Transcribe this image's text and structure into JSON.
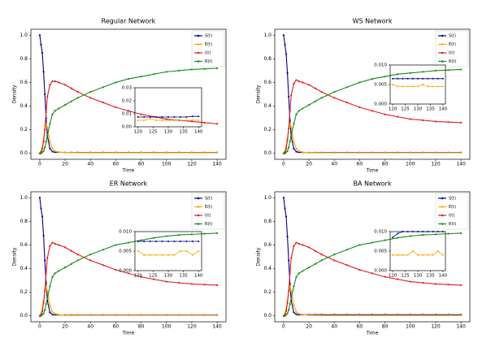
{
  "chart_data": [
    {
      "type": "line",
      "title": "Regular Network",
      "xlabel": "Time",
      "ylabel": "Density",
      "x": [
        0,
        1,
        2,
        3,
        4,
        5,
        6,
        8,
        10,
        12,
        15,
        20,
        25,
        30,
        40,
        50,
        60,
        70,
        80,
        90,
        100,
        110,
        120,
        130,
        140
      ],
      "xlim": [
        -7,
        147
      ],
      "ylim": [
        -0.05,
        1.05
      ],
      "xticks": [
        0,
        20,
        40,
        60,
        80,
        100,
        120,
        140
      ],
      "yticks": [
        {
          "value": 0,
          "label": "0.0"
        },
        0.2,
        0.4,
        0.6,
        0.8,
        {
          "value": 1,
          "label": "1.0"
        }
      ],
      "series": [
        {
          "name": "S(t)",
          "color": "#00008b",
          "values": [
            1.0,
            0.92,
            0.85,
            0.69,
            0.5,
            0.3,
            0.15,
            0.04,
            0.015,
            0.01,
            0.009,
            0.008,
            0.008,
            0.008,
            0.008,
            0.008,
            0.008,
            0.008,
            0.008,
            0.008,
            0.008,
            0.008,
            0.008,
            0.008,
            0.008
          ]
        },
        {
          "name": "E(t)",
          "color": "#ffa500",
          "values": [
            0,
            0.02,
            0.05,
            0.12,
            0.2,
            0.25,
            0.22,
            0.1,
            0.04,
            0.02,
            0.01,
            0.008,
            0.007,
            0.006,
            0.006,
            0.006,
            0.006,
            0.006,
            0.006,
            0.006,
            0.006,
            0.006,
            0.006,
            0.006,
            0.006
          ]
        },
        {
          "name": "I(t)",
          "color": "#e41a1c",
          "values": [
            0,
            0.01,
            0.04,
            0.1,
            0.2,
            0.35,
            0.48,
            0.58,
            0.61,
            0.61,
            0.6,
            0.58,
            0.55,
            0.52,
            0.47,
            0.43,
            0.39,
            0.36,
            0.33,
            0.31,
            0.29,
            0.28,
            0.27,
            0.26,
            0.25
          ]
        },
        {
          "name": "R(t)",
          "color": "#1a8a1a",
          "values": [
            0,
            0,
            0.01,
            0.02,
            0.05,
            0.1,
            0.15,
            0.25,
            0.33,
            0.36,
            0.38,
            0.41,
            0.44,
            0.47,
            0.52,
            0.56,
            0.6,
            0.63,
            0.65,
            0.67,
            0.69,
            0.7,
            0.71,
            0.715,
            0.72
          ]
        }
      ],
      "inset": {
        "x": [
          120,
          122,
          124,
          126,
          128,
          130,
          132,
          134,
          136,
          138,
          140
        ],
        "xlim": [
          119,
          141
        ],
        "ylim": [
          0,
          0.03
        ],
        "xticks": [
          120,
          125,
          130,
          135,
          140
        ],
        "yticks": [
          {
            "value": 0,
            "label": "0.00"
          },
          {
            "value": 0.01,
            "label": "0.01"
          },
          {
            "value": 0.02,
            "label": "0.02"
          },
          {
            "value": 0.03,
            "label": "0.03"
          }
        ],
        "series": [
          {
            "color": "#00008b",
            "values": [
              0.0075,
              0.0075,
              0.0075,
              0.0075,
              0.0075,
              0.0075,
              0.0075,
              0.0075,
              0.0075,
              0.008,
              0.008
            ]
          },
          {
            "color": "#ffa500",
            "values": [
              0.005,
              0.005,
              0.006,
              0.005,
              0.005,
              0.005,
              0.005,
              0.005,
              0.005,
              0.005,
              0.005
            ]
          }
        ]
      }
    },
    {
      "type": "line",
      "title": "WS Network",
      "xlabel": "Time",
      "ylabel": "Density",
      "x": [
        0,
        1,
        2,
        3,
        4,
        5,
        6,
        8,
        10,
        12,
        15,
        20,
        25,
        30,
        40,
        50,
        60,
        70,
        80,
        90,
        100,
        110,
        120,
        130,
        140
      ],
      "xlim": [
        -7,
        147
      ],
      "ylim": [
        -0.05,
        1.05
      ],
      "xticks": [
        0,
        20,
        40,
        60,
        80,
        100,
        120,
        140
      ],
      "yticks": [
        {
          "value": 0,
          "label": "0.0"
        },
        0.2,
        0.4,
        0.6,
        0.8,
        {
          "value": 1,
          "label": "1.0"
        }
      ],
      "series": [
        {
          "name": "S(t)",
          "color": "#00008b",
          "values": [
            1.0,
            0.92,
            0.84,
            0.68,
            0.48,
            0.28,
            0.14,
            0.04,
            0.014,
            0.009,
            0.008,
            0.007,
            0.007,
            0.007,
            0.007,
            0.007,
            0.007,
            0.007,
            0.007,
            0.007,
            0.007,
            0.007,
            0.007,
            0.007,
            0.007
          ]
        },
        {
          "name": "E(t)",
          "color": "#ffa500",
          "values": [
            0,
            0.02,
            0.06,
            0.13,
            0.21,
            0.25,
            0.22,
            0.1,
            0.04,
            0.02,
            0.01,
            0.007,
            0.006,
            0.005,
            0.005,
            0.005,
            0.005,
            0.005,
            0.005,
            0.005,
            0.005,
            0.005,
            0.005,
            0.005,
            0.005
          ]
        },
        {
          "name": "I(t)",
          "color": "#e41a1c",
          "values": [
            0,
            0.01,
            0.04,
            0.11,
            0.21,
            0.36,
            0.49,
            0.59,
            0.62,
            0.61,
            0.6,
            0.58,
            0.55,
            0.52,
            0.47,
            0.43,
            0.39,
            0.36,
            0.33,
            0.31,
            0.29,
            0.28,
            0.27,
            0.265,
            0.26
          ]
        },
        {
          "name": "R(t)",
          "color": "#1a8a1a",
          "values": [
            0,
            0,
            0.01,
            0.02,
            0.05,
            0.1,
            0.15,
            0.25,
            0.33,
            0.36,
            0.38,
            0.41,
            0.44,
            0.47,
            0.52,
            0.56,
            0.6,
            0.63,
            0.65,
            0.67,
            0.68,
            0.69,
            0.7,
            0.705,
            0.71
          ]
        }
      ],
      "inset": {
        "x": [
          120,
          122,
          124,
          126,
          128,
          130,
          132,
          134,
          136,
          138,
          140
        ],
        "xlim": [
          119,
          141
        ],
        "ylim": [
          0,
          0.01
        ],
        "xticks": [
          120,
          125,
          130,
          135,
          140
        ],
        "yticks": [
          {
            "value": 0,
            "label": "0.000"
          },
          {
            "value": 0.005,
            "label": "0.005"
          },
          {
            "value": 0.01,
            "label": "0.010"
          }
        ],
        "series": [
          {
            "color": "#00008b",
            "values": [
              0.0065,
              0.0065,
              0.0065,
              0.0065,
              0.0065,
              0.0065,
              0.0065,
              0.0065,
              0.0065,
              0.0065,
              0.0065
            ]
          },
          {
            "color": "#ffa500",
            "values": [
              0.005,
              0.0045,
              0.0045,
              0.0045,
              0.0045,
              0.0045,
              0.005,
              0.0045,
              0.0045,
              0.0045,
              0.0045
            ]
          }
        ]
      }
    },
    {
      "type": "line",
      "title": "ER Network",
      "xlabel": "Time",
      "ylabel": "Density",
      "x": [
        0,
        1,
        2,
        3,
        4,
        5,
        6,
        8,
        10,
        12,
        15,
        20,
        25,
        30,
        40,
        50,
        60,
        70,
        80,
        90,
        100,
        110,
        120,
        130,
        140
      ],
      "xlim": [
        -7,
        147
      ],
      "ylim": [
        -0.05,
        1.05
      ],
      "xticks": [
        0,
        20,
        40,
        60,
        80,
        100,
        120,
        140
      ],
      "yticks": [
        {
          "value": 0,
          "label": "0.0"
        },
        0.2,
        0.4,
        0.6,
        0.8,
        {
          "value": 1,
          "label": "1.0"
        }
      ],
      "series": [
        {
          "name": "S(t)",
          "color": "#00008b",
          "values": [
            1.0,
            0.91,
            0.84,
            0.68,
            0.47,
            0.28,
            0.13,
            0.03,
            0.012,
            0.009,
            0.008,
            0.0075,
            0.0075,
            0.0075,
            0.0075,
            0.0075,
            0.0075,
            0.0075,
            0.0075,
            0.0075,
            0.0075,
            0.0075,
            0.0075,
            0.0075,
            0.0075
          ]
        },
        {
          "name": "E(t)",
          "color": "#ffa500",
          "values": [
            0,
            0.02,
            0.06,
            0.13,
            0.21,
            0.25,
            0.21,
            0.09,
            0.035,
            0.018,
            0.01,
            0.006,
            0.005,
            0.005,
            0.005,
            0.005,
            0.005,
            0.005,
            0.005,
            0.005,
            0.005,
            0.005,
            0.005,
            0.005,
            0.005
          ]
        },
        {
          "name": "I(t)",
          "color": "#e41a1c",
          "values": [
            0,
            0.01,
            0.04,
            0.11,
            0.21,
            0.36,
            0.49,
            0.59,
            0.62,
            0.61,
            0.6,
            0.58,
            0.55,
            0.52,
            0.47,
            0.43,
            0.39,
            0.36,
            0.33,
            0.31,
            0.29,
            0.28,
            0.27,
            0.265,
            0.26
          ]
        },
        {
          "name": "R(t)",
          "color": "#1a8a1a",
          "values": [
            0,
            0,
            0.01,
            0.02,
            0.05,
            0.1,
            0.15,
            0.25,
            0.33,
            0.36,
            0.38,
            0.41,
            0.44,
            0.47,
            0.52,
            0.56,
            0.6,
            0.62,
            0.64,
            0.66,
            0.675,
            0.685,
            0.69,
            0.695,
            0.7
          ]
        }
      ],
      "inset": {
        "x": [
          120,
          122,
          124,
          126,
          128,
          130,
          132,
          134,
          136,
          138,
          140
        ],
        "xlim": [
          119,
          141
        ],
        "ylim": [
          0,
          0.01
        ],
        "xticks": [
          120,
          125,
          130,
          135,
          140
        ],
        "yticks": [
          {
            "value": 0,
            "label": "0.000"
          },
          {
            "value": 0.005,
            "label": "0.005"
          },
          {
            "value": 0.01,
            "label": "0.010"
          }
        ],
        "series": [
          {
            "color": "#00008b",
            "values": [
              0.0075,
              0.0075,
              0.0075,
              0.0075,
              0.0075,
              0.0075,
              0.0075,
              0.0075,
              0.0075,
              0.0075,
              0.0075
            ]
          },
          {
            "color": "#ffa500",
            "values": [
              0.005,
              0.004,
              0.004,
              0.004,
              0.004,
              0.004,
              0.004,
              0.005,
              0.005,
              0.004,
              0.005
            ]
          }
        ]
      }
    },
    {
      "type": "line",
      "title": "BA Network",
      "xlabel": "Time",
      "ylabel": "Density",
      "x": [
        0,
        1,
        2,
        3,
        4,
        5,
        6,
        8,
        10,
        12,
        15,
        20,
        25,
        30,
        40,
        50,
        60,
        70,
        80,
        90,
        100,
        110,
        120,
        130,
        140
      ],
      "xlim": [
        -7,
        147
      ],
      "ylim": [
        -0.05,
        1.05
      ],
      "xticks": [
        0,
        20,
        40,
        60,
        80,
        100,
        120,
        140
      ],
      "yticks": [
        {
          "value": 0,
          "label": "0.0"
        },
        0.2,
        0.4,
        0.6,
        0.8,
        {
          "value": 1,
          "label": "1.0"
        }
      ],
      "series": [
        {
          "name": "S(t)",
          "color": "#00008b",
          "values": [
            1.0,
            0.91,
            0.84,
            0.67,
            0.47,
            0.27,
            0.13,
            0.03,
            0.013,
            0.01,
            0.01,
            0.01,
            0.01,
            0.01,
            0.01,
            0.01,
            0.01,
            0.01,
            0.01,
            0.01,
            0.01,
            0.01,
            0.01,
            0.01,
            0.01
          ]
        },
        {
          "name": "E(t)",
          "color": "#ffa500",
          "values": [
            0,
            0.02,
            0.06,
            0.13,
            0.21,
            0.25,
            0.21,
            0.09,
            0.035,
            0.018,
            0.01,
            0.006,
            0.005,
            0.004,
            0.004,
            0.004,
            0.004,
            0.004,
            0.004,
            0.004,
            0.004,
            0.004,
            0.004,
            0.004,
            0.004
          ]
        },
        {
          "name": "I(t)",
          "color": "#e41a1c",
          "values": [
            0,
            0.01,
            0.04,
            0.11,
            0.21,
            0.36,
            0.49,
            0.59,
            0.62,
            0.61,
            0.6,
            0.58,
            0.55,
            0.52,
            0.47,
            0.43,
            0.39,
            0.36,
            0.33,
            0.31,
            0.29,
            0.28,
            0.27,
            0.265,
            0.26
          ]
        },
        {
          "name": "R(t)",
          "color": "#1a8a1a",
          "values": [
            0,
            0,
            0.01,
            0.02,
            0.05,
            0.1,
            0.15,
            0.25,
            0.33,
            0.36,
            0.38,
            0.41,
            0.44,
            0.47,
            0.52,
            0.56,
            0.6,
            0.62,
            0.64,
            0.66,
            0.675,
            0.685,
            0.69,
            0.695,
            0.7
          ]
        }
      ],
      "inset": {
        "x": [
          120,
          122,
          124,
          126,
          128,
          130,
          132,
          134,
          136,
          138,
          140
        ],
        "xlim": [
          119,
          141
        ],
        "ylim": [
          0,
          0.01
        ],
        "xticks": [
          120,
          125,
          130,
          135,
          140
        ],
        "yticks": [
          {
            "value": 0,
            "label": "0.000"
          },
          {
            "value": 0.005,
            "label": "0.005"
          },
          {
            "value": 0.01,
            "label": "0.010"
          }
        ],
        "series": [
          {
            "color": "#00008b",
            "values": [
              0.0085,
              0.0095,
              0.01,
              0.01,
              0.01,
              0.01,
              0.01,
              0.01,
              0.01,
              0.01,
              0.01
            ]
          },
          {
            "color": "#ffa500",
            "values": [
              0.004,
              0.004,
              0.004,
              0.004,
              0.005,
              0.004,
              0.004,
              0.004,
              0.004,
              0.005,
              0.004
            ]
          }
        ]
      }
    }
  ]
}
